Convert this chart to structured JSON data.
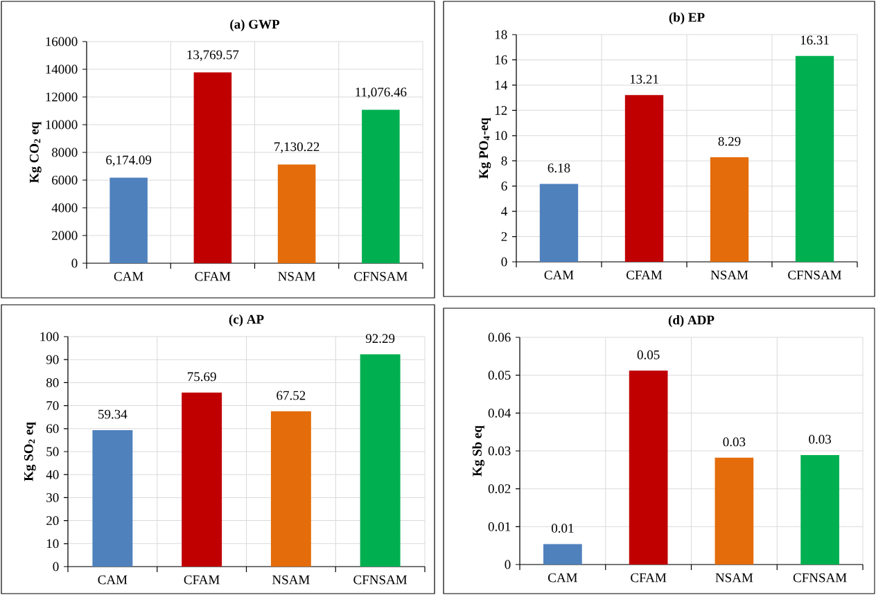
{
  "chart_data": [
    {
      "type": "bar",
      "title": "(a) GWP",
      "ylabel": "Kg CO$_{2}$ eq",
      "categories": [
        "CAM",
        "CFAM",
        "NSAM",
        "CFNSAM"
      ],
      "colors": [
        "#4f81bd",
        "#c00000",
        "#e46c0a",
        "#00b050"
      ],
      "values": [
        6174.09,
        13769.57,
        7130.22,
        11076.46
      ],
      "value_labels": [
        "6,174.09",
        "13,769.57",
        "7,130.22",
        "11,076.46"
      ],
      "ylim": [
        0,
        16000
      ],
      "yticks": [
        0,
        2000,
        4000,
        6000,
        8000,
        10000,
        12000,
        14000,
        16000
      ],
      "grid": true
    },
    {
      "type": "bar",
      "title": "(b) EP",
      "ylabel": "Kg PO$_{4}$-eq",
      "categories": [
        "CAM",
        "CFAM",
        "NSAM",
        "CFNSAM"
      ],
      "colors": [
        "#4f81bd",
        "#c00000",
        "#e46c0a",
        "#00b050"
      ],
      "values": [
        6.18,
        13.21,
        8.29,
        16.31
      ],
      "value_labels": [
        "6.18",
        "13.21",
        "8.29",
        "16.31"
      ],
      "ylim": [
        0,
        18
      ],
      "yticks": [
        0,
        2,
        4,
        6,
        8,
        10,
        12,
        14,
        16,
        18
      ],
      "grid": true
    },
    {
      "type": "bar",
      "title": "(c) AP",
      "ylabel": "Kg SO$_{2}$ eq",
      "categories": [
        "CAM",
        "CFAM",
        "NSAM",
        "CFNSAM"
      ],
      "colors": [
        "#4f81bd",
        "#c00000",
        "#e46c0a",
        "#00b050"
      ],
      "values": [
        59.34,
        75.69,
        67.52,
        92.29
      ],
      "value_labels": [
        "59.34",
        "75.69",
        "67.52",
        "92.29"
      ],
      "ylim": [
        0,
        100
      ],
      "yticks": [
        0,
        10,
        20,
        30,
        40,
        50,
        60,
        70,
        80,
        90,
        100
      ],
      "grid": true
    },
    {
      "type": "bar",
      "title": "(d) ADP",
      "ylabel": "Kg Sb eq",
      "categories": [
        "CAM",
        "CFAM",
        "NSAM",
        "CFNSAM"
      ],
      "colors": [
        "#4f81bd",
        "#c00000",
        "#e46c0a",
        "#00b050"
      ],
      "values": [
        0.0054,
        0.0512,
        0.0282,
        0.0289
      ],
      "value_labels": [
        "0.01",
        "0.05",
        "0.03",
        "0.03"
      ],
      "ylim": [
        0,
        0.06
      ],
      "yticks": [
        0,
        0.01,
        0.02,
        0.03,
        0.04,
        0.05,
        0.06
      ],
      "grid": true
    }
  ]
}
